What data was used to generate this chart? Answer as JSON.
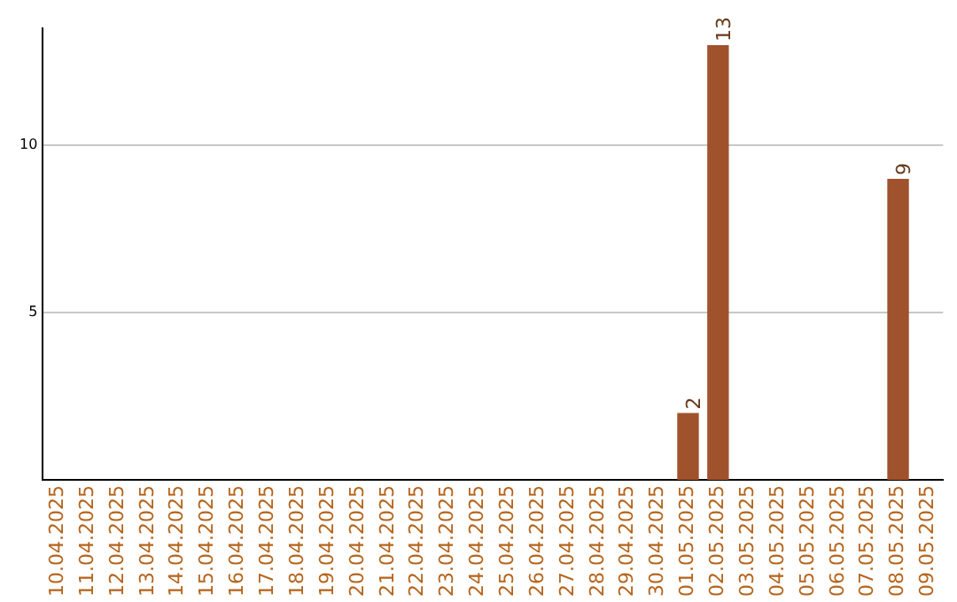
{
  "chart_data": {
    "type": "bar",
    "categories": [
      "10.04.2025",
      "11.04.2025",
      "12.04.2025",
      "13.04.2025",
      "14.04.2025",
      "15.04.2025",
      "16.04.2025",
      "17.04.2025",
      "18.04.2025",
      "19.04.2025",
      "20.04.2025",
      "21.04.2025",
      "22.04.2025",
      "23.04.2025",
      "24.04.2025",
      "25.04.2025",
      "26.04.2025",
      "27.04.2025",
      "28.04.2025",
      "29.04.2025",
      "30.04.2025",
      "01.05.2025",
      "02.05.2025",
      "03.05.2025",
      "04.05.2025",
      "05.05.2025",
      "06.05.2025",
      "07.05.2025",
      "08.05.2025",
      "09.05.2025"
    ],
    "values": [
      null,
      null,
      null,
      null,
      null,
      null,
      null,
      null,
      null,
      null,
      null,
      null,
      null,
      null,
      null,
      null,
      null,
      null,
      null,
      null,
      null,
      2,
      13,
      null,
      null,
      null,
      null,
      null,
      9,
      null
    ],
    "color": "#a0522d",
    "ylim": [
      0,
      13.5
    ],
    "yticks": [
      5,
      10
    ],
    "grid": "y",
    "data_labels": true
  }
}
